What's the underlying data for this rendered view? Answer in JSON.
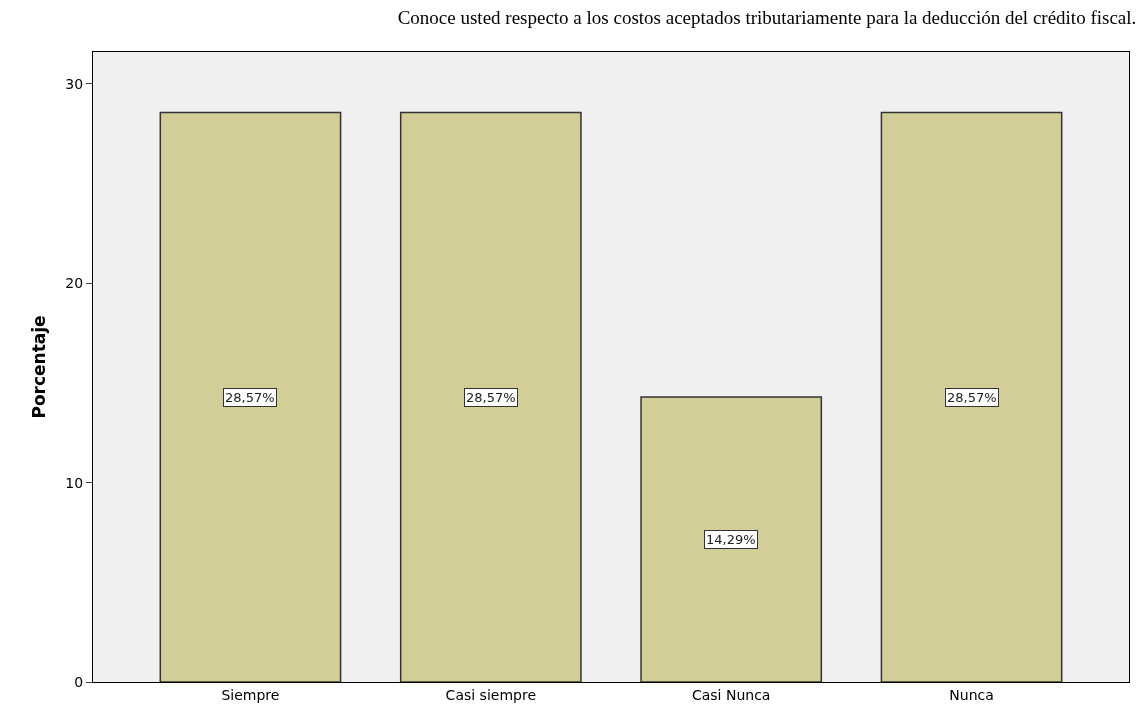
{
  "chart_data": {
    "type": "bar",
    "title": "Conoce usted respecto a los costos aceptados tributariamente para la deducción del crédito fiscal.",
    "ylabel": "Porcentaje",
    "categories": [
      "Siempre",
      "Casi siempre",
      "Casi Nunca",
      "Nunca"
    ],
    "values": [
      28.57,
      28.57,
      14.29,
      28.57
    ],
    "value_labels": [
      "28,57%",
      "28,57%",
      "14,29%",
      "28,57%"
    ],
    "color": "#d3cd98",
    "ylim": [
      0,
      31.6
    ],
    "yticks": [
      0,
      10,
      20,
      30
    ],
    "grid": false,
    "legend": false
  }
}
